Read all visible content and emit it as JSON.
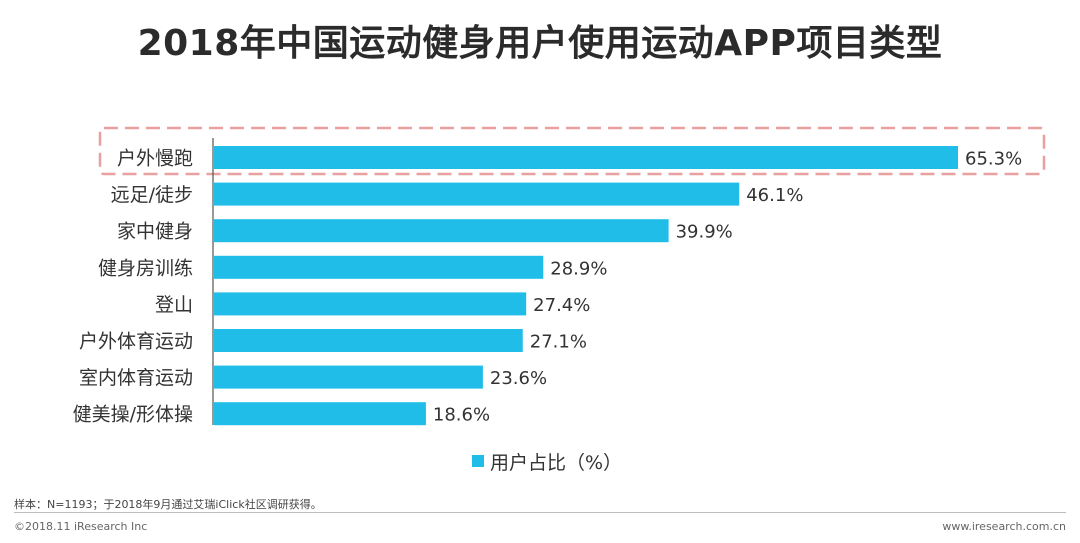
{
  "chart_data": {
    "type": "bar",
    "orientation": "horizontal",
    "title": "2018年中国运动健身用户使用运动APP项目类型",
    "categories": [
      "户外慢跑",
      "远足/徒步",
      "家中健身",
      "健身房训练",
      "登山",
      "户外体育运动",
      "室内体育运动",
      "健美操/形体操"
    ],
    "values": [
      65.3,
      46.1,
      39.9,
      28.9,
      27.4,
      27.1,
      23.6,
      18.6
    ],
    "value_labels": [
      "65.3%",
      "46.1%",
      "39.9%",
      "28.9%",
      "27.4%",
      "27.1%",
      "23.6%",
      "18.6%"
    ],
    "series_name": "用户占比（%）",
    "xlim": [
      0,
      70
    ],
    "highlighted_category": "户外慢跑",
    "bar_color": "#1fbde8",
    "highlight_color": "#e8a0a0"
  },
  "footer": {
    "note": "样本：N=1193；于2018年9月通过艾瑞iClick社区调研获得。",
    "copyright": "©2018.11 iResearch Inc",
    "website": "www.iresearch.com.cn"
  }
}
